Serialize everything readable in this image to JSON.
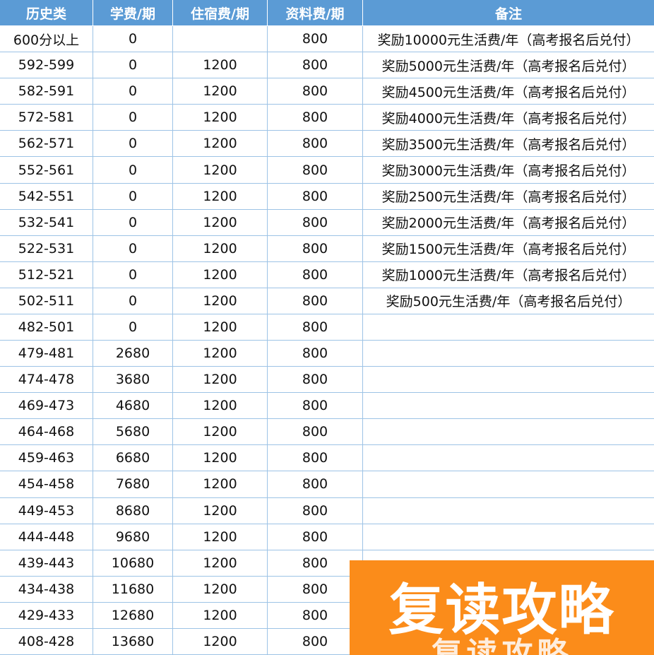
{
  "table": {
    "header": [
      "历史类",
      "学费/期",
      "住宿费/期",
      "资料费/期",
      "备注"
    ],
    "rows": [
      [
        "600分以上",
        "0",
        null,
        "800",
        "奖励10000元生活费/年（高考报名后兑付）"
      ],
      [
        "592-599",
        "0",
        "1200",
        "800",
        "奖励5000元生活费/年（高考报名后兑付）"
      ],
      [
        "582-591",
        "0",
        "1200",
        "800",
        "奖励4500元生活费/年（高考报名后兑付）"
      ],
      [
        "572-581",
        "0",
        "1200",
        "800",
        "奖励4000元生活费/年（高考报名后兑付）"
      ],
      [
        "562-571",
        "0",
        "1200",
        "800",
        "奖励3500元生活费/年（高考报名后兑付）"
      ],
      [
        "552-561",
        "0",
        "1200",
        "800",
        "奖励3000元生活费/年（高考报名后兑付）"
      ],
      [
        "542-551",
        "0",
        "1200",
        "800",
        "奖励2500元生活费/年（高考报名后兑付）"
      ],
      [
        "532-541",
        "0",
        "1200",
        "800",
        "奖励2000元生活费/年（高考报名后兑付）"
      ],
      [
        "522-531",
        "0",
        "1200",
        "800",
        "奖励1500元生活费/年（高考报名后兑付）"
      ],
      [
        "512-521",
        "0",
        "1200",
        "800",
        "奖励1000元生活费/年（高考报名后兑付）"
      ],
      [
        "502-511",
        "0",
        "1200",
        "800",
        "奖励500元生活费/年（高考报名后兑付）"
      ],
      [
        "482-501",
        "0",
        "1200",
        "800",
        null
      ],
      [
        "479-481",
        "2680",
        "1200",
        "800",
        null
      ],
      [
        "474-478",
        "3680",
        "1200",
        "800",
        null
      ],
      [
        "469-473",
        "4680",
        "1200",
        "800",
        null
      ],
      [
        "464-468",
        "5680",
        "1200",
        "800",
        null
      ],
      [
        "459-463",
        "6680",
        "1200",
        "800",
        null
      ],
      [
        "454-458",
        "7680",
        "1200",
        "800",
        null
      ],
      [
        "449-453",
        "8680",
        "1200",
        "800",
        null
      ],
      [
        "444-448",
        "9680",
        "1200",
        "800",
        null
      ],
      [
        "439-443",
        "10680",
        "1200",
        "800",
        null
      ],
      [
        "434-438",
        "11680",
        "1200",
        "800",
        null
      ],
      [
        "429-433",
        "12680",
        "1200",
        "800",
        null
      ],
      [
        "408-428",
        "13680",
        "1200",
        "800",
        null
      ]
    ]
  },
  "watermark": {
    "text": "复读攻略"
  }
}
